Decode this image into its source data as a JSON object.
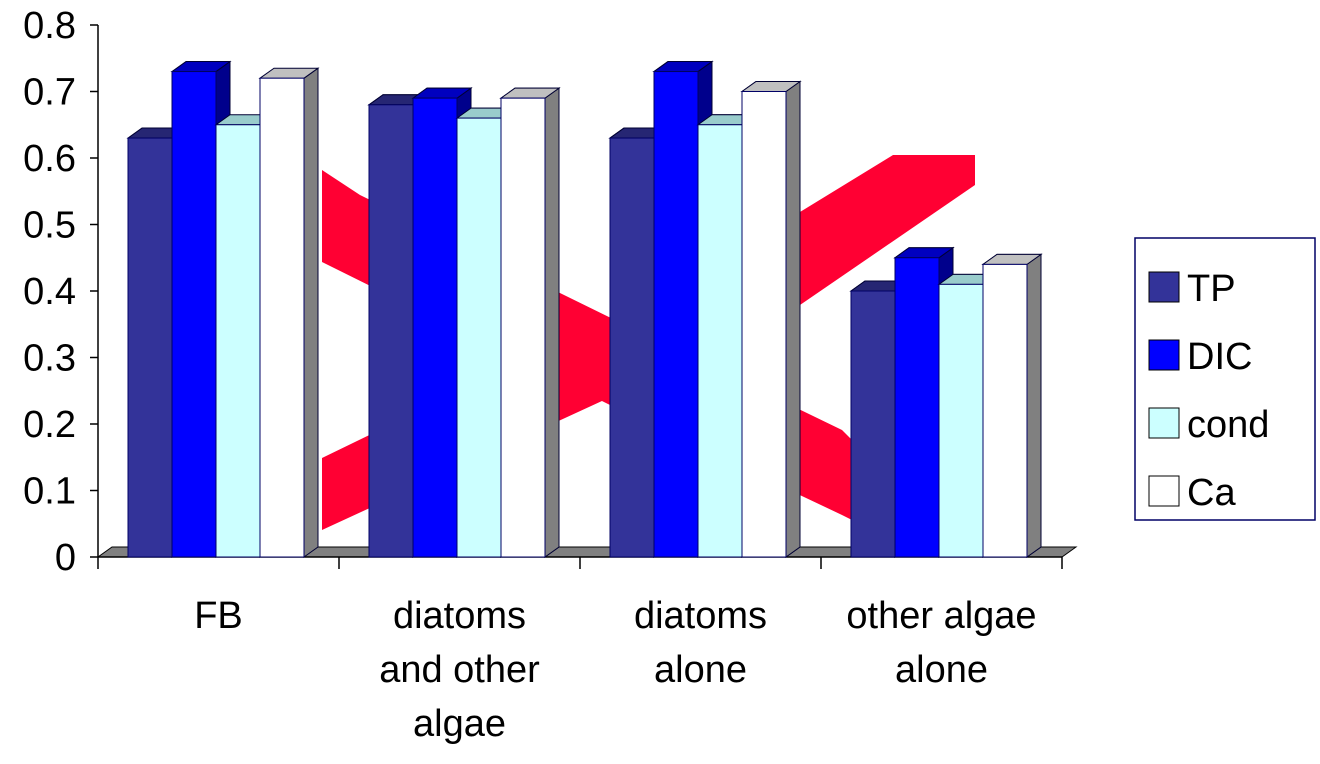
{
  "chart_data": {
    "type": "bar",
    "title": "",
    "xlabel": "",
    "ylabel": "",
    "ylim": [
      0,
      0.8
    ],
    "y_ticks": [
      "0",
      "0.1",
      "0.2",
      "0.3",
      "0.4",
      "0.5",
      "0.6",
      "0.7",
      "0.8"
    ],
    "categories": [
      [
        "FB"
      ],
      [
        "diatoms",
        "and other",
        "algae"
      ],
      [
        "diatoms",
        "alone"
      ],
      [
        "other algae",
        "alone"
      ]
    ],
    "series": [
      {
        "name": "TP",
        "color": "#333399",
        "values": [
          0.63,
          0.68,
          0.63,
          0.4
        ]
      },
      {
        "name": "DIC",
        "color": "#0000FF",
        "values": [
          0.73,
          0.69,
          0.73,
          0.45
        ]
      },
      {
        "name": "cond",
        "color": "#CCFFFF",
        "values": [
          0.65,
          0.66,
          0.65,
          0.41
        ]
      },
      {
        "name": "Ca",
        "color": "#FFFFFF",
        "values": [
          0.72,
          0.69,
          0.7,
          0.44
        ]
      }
    ],
    "legend_placement": "right",
    "grid": false,
    "three_d": true,
    "overlay_shape": "red-x-mark",
    "overlay_color": "#FF0033"
  }
}
